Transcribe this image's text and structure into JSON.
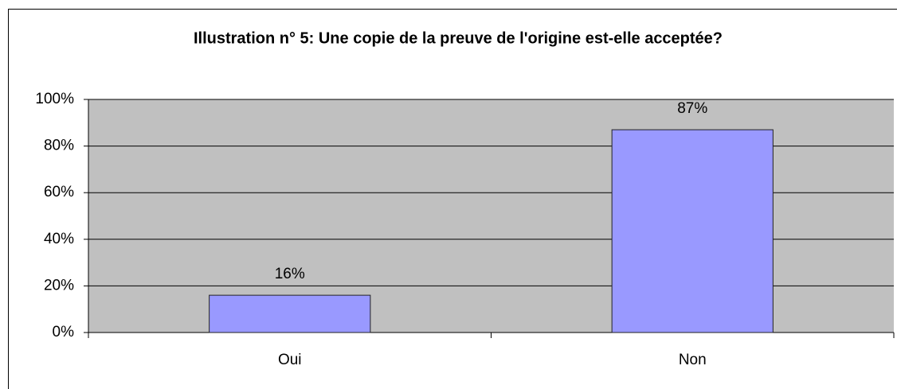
{
  "chart_data": {
    "type": "bar",
    "title": "Illustration n° 5: Une copie de la preuve de l'origine est-elle acceptée?",
    "categories": [
      "Oui",
      "Non"
    ],
    "values": [
      16,
      87
    ],
    "value_labels": [
      "16%",
      "87%"
    ],
    "color": "#9999ff",
    "ylim": [
      0,
      100
    ],
    "yticks": [
      {
        "value": 0,
        "label": "0%"
      },
      {
        "value": 20,
        "label": "20%"
      },
      {
        "value": 40,
        "label": "40%"
      },
      {
        "value": 60,
        "label": "60%"
      },
      {
        "value": 80,
        "label": "80%"
      },
      {
        "value": 100,
        "label": "100%"
      }
    ],
    "grid": true
  }
}
